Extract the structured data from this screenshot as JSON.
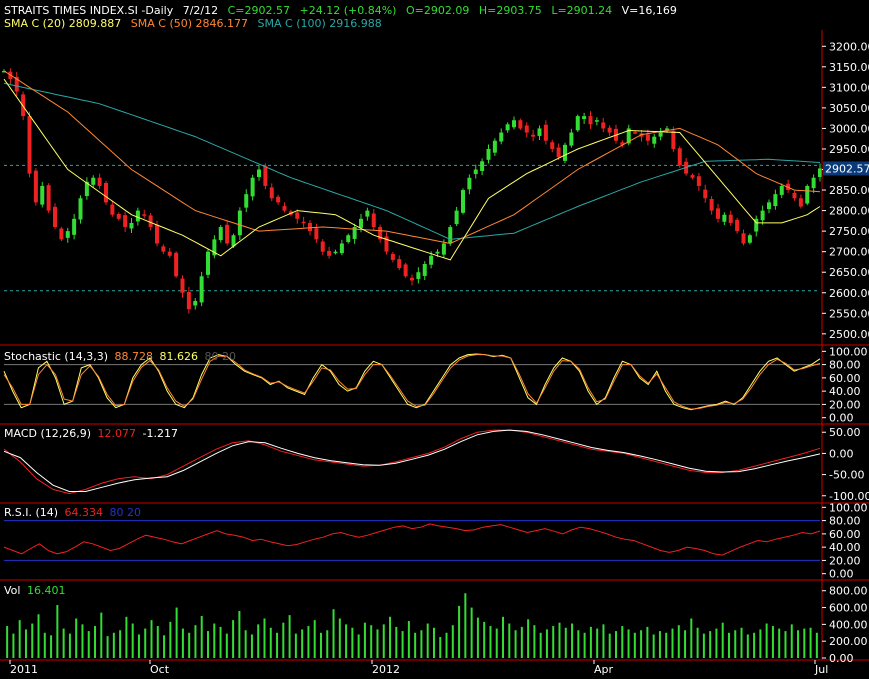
{
  "header": {
    "symbol": "STRAITS TIMES INDEX.SI -Daily",
    "date": "7/2/12",
    "close": "C=2902.57",
    "change": "+24.12 (+0.84%)",
    "open": "O=2902.09",
    "high": "H=2903.75",
    "low": "L=2901.24",
    "volume": "V=16,169"
  },
  "overlays": [
    {
      "label": "SMA C (20)",
      "value": "2809.887",
      "color": "#ffff66"
    },
    {
      "label": "SMA C (50)",
      "value": "2846.177",
      "color": "#ff8833"
    },
    {
      "label": "SMA C (100)",
      "value": "2916.988",
      "color": "#2aa7a7"
    }
  ],
  "last_price_tag": "2902.57",
  "panes": {
    "stochastic": {
      "label": "Stochastic (14,3,3)",
      "k": "88.728",
      "d": "81.626",
      "levels": "80 20"
    },
    "macd": {
      "label": "MACD (12,26,9)",
      "macd": "12.077",
      "signal": "-1.217"
    },
    "rsi": {
      "label": "R.S.I. (14)",
      "value": "64.334",
      "levels": "80 20"
    },
    "vol": {
      "label": "Vol",
      "value": "16.401"
    }
  },
  "colors": {
    "up": "#33dd33",
    "down": "#ee2222",
    "sma20": "#ffff66",
    "sma50": "#ff8833",
    "sma100": "#2aa7a7",
    "pane_border": "#cc0000",
    "stoch_k": "#ffff66",
    "stoch_d": "#ff8833",
    "macd_line": "#ffffff",
    "macd_signal": "#ee2222",
    "rsi_line": "#ee2222",
    "rsi_level": "#2233cc",
    "ref_line": "#2aa7a7",
    "vol_bar": "#33dd33"
  },
  "chart_data": [
    {
      "type": "candlestick",
      "title": "STRAITS TIMES INDEX.SI -Daily",
      "x_ticks": [
        "2011",
        "Oct",
        "2012",
        "Apr",
        "Jul"
      ],
      "y_ticks": [
        "3200.00",
        "3150.00",
        "3100.00",
        "3050.00",
        "3000.00",
        "2950.00",
        "2900.00",
        "2850.00",
        "2800.00",
        "2750.00",
        "2700.00",
        "2650.00",
        "2600.00",
        "2550.00",
        "2500.00"
      ],
      "ylim": [
        2485,
        3225
      ],
      "reference_lines": [
        2910,
        2605
      ],
      "closes": [
        3140,
        3120,
        3090,
        3030,
        2890,
        2820,
        2860,
        2800,
        2760,
        2730,
        2750,
        2780,
        2830,
        2870,
        2880,
        2860,
        2820,
        2790,
        2780,
        2760,
        2770,
        2800,
        2790,
        2760,
        2720,
        2700,
        2690,
        2640,
        2600,
        2560,
        2580,
        2640,
        2700,
        2730,
        2760,
        2720,
        2740,
        2800,
        2840,
        2880,
        2900,
        2860,
        2830,
        2820,
        2800,
        2790,
        2780,
        2770,
        2750,
        2730,
        2700,
        2690,
        2700,
        2720,
        2740,
        2760,
        2780,
        2800,
        2760,
        2730,
        2700,
        2680,
        2660,
        2640,
        2630,
        2650,
        2670,
        2690,
        2700,
        2720,
        2760,
        2800,
        2850,
        2880,
        2900,
        2920,
        2950,
        2970,
        2990,
        3010,
        3020,
        3000,
        2990,
        2980,
        3000,
        2970,
        2950,
        2930,
        2960,
        2990,
        3030,
        3030,
        3010,
        3020,
        3000,
        2990,
        2970,
        2960,
        3000,
        2990,
        2980,
        2970,
        2980,
        2990,
        3000,
        2950,
        2910,
        2890,
        2880,
        2860,
        2830,
        2800,
        2780,
        2790,
        2770,
        2750,
        2720,
        2740,
        2780,
        2800,
        2820,
        2840,
        2860,
        2850,
        2830,
        2810,
        2860,
        2880,
        2902.57
      ],
      "sma20_anchors": [
        [
          0,
          3120
        ],
        [
          10,
          2900
        ],
        [
          20,
          2790
        ],
        [
          28,
          2740
        ],
        [
          34,
          2690
        ],
        [
          40,
          2760
        ],
        [
          46,
          2800
        ],
        [
          52,
          2790
        ],
        [
          58,
          2740
        ],
        [
          64,
          2710
        ],
        [
          70,
          2680
        ],
        [
          76,
          2830
        ],
        [
          82,
          2890
        ],
        [
          90,
          2950
        ],
        [
          98,
          2995
        ],
        [
          106,
          2990
        ],
        [
          112,
          2880
        ],
        [
          118,
          2770
        ],
        [
          122,
          2770
        ],
        [
          126,
          2790
        ],
        [
          128,
          2810
        ]
      ],
      "sma50_anchors": [
        [
          0,
          3140
        ],
        [
          10,
          3040
        ],
        [
          20,
          2900
        ],
        [
          30,
          2800
        ],
        [
          40,
          2750
        ],
        [
          50,
          2760
        ],
        [
          60,
          2750
        ],
        [
          70,
          2720
        ],
        [
          80,
          2790
        ],
        [
          90,
          2900
        ],
        [
          100,
          2985
        ],
        [
          106,
          3000
        ],
        [
          112,
          2960
        ],
        [
          118,
          2890
        ],
        [
          124,
          2850
        ],
        [
          128,
          2846
        ]
      ],
      "sma100_anchors": [
        [
          0,
          3110
        ],
        [
          15,
          3060
        ],
        [
          30,
          2980
        ],
        [
          45,
          2880
        ],
        [
          60,
          2800
        ],
        [
          70,
          2730
        ],
        [
          80,
          2745
        ],
        [
          90,
          2810
        ],
        [
          100,
          2870
        ],
        [
          110,
          2920
        ],
        [
          120,
          2925
        ],
        [
          128,
          2917
        ]
      ]
    },
    {
      "type": "line",
      "title": "Stochastic (14,3,3)",
      "y_ticks": [
        "100.00",
        "80.00",
        "60.00",
        "40.00",
        "20.00",
        "0.00"
      ],
      "ylim": [
        -5,
        102
      ],
      "levels": [
        80,
        20
      ],
      "series": [
        {
          "name": "%K",
          "values": [
            70,
            40,
            15,
            20,
            75,
            85,
            60,
            20,
            25,
            75,
            80,
            60,
            30,
            15,
            20,
            60,
            80,
            90,
            70,
            40,
            20,
            15,
            30,
            65,
            90,
            95,
            92,
            80,
            70,
            65,
            60,
            50,
            55,
            45,
            40,
            35,
            60,
            80,
            70,
            50,
            40,
            45,
            70,
            85,
            80,
            60,
            40,
            20,
            15,
            20,
            40,
            60,
            80,
            90,
            95,
            96,
            95,
            92,
            94,
            90,
            60,
            30,
            20,
            50,
            75,
            90,
            85,
            70,
            40,
            20,
            30,
            60,
            85,
            80,
            60,
            50,
            70,
            40,
            20,
            15,
            12,
            15,
            18,
            20,
            25,
            20,
            30,
            50,
            70,
            85,
            90,
            80,
            70,
            75,
            80,
            88.728
          ]
        },
        {
          "name": "%D",
          "values": [
            65,
            45,
            20,
            20,
            65,
            80,
            65,
            28,
            25,
            65,
            78,
            62,
            35,
            18,
            20,
            55,
            76,
            86,
            72,
            45,
            25,
            17,
            28,
            58,
            85,
            93,
            92,
            83,
            72,
            66,
            61,
            52,
            54,
            47,
            42,
            37,
            55,
            75,
            72,
            55,
            43,
            44,
            65,
            80,
            80,
            63,
            44,
            25,
            17,
            19,
            36,
            56,
            75,
            87,
            93,
            95,
            95,
            93,
            93,
            90,
            65,
            36,
            22,
            45,
            70,
            86,
            85,
            73,
            45,
            24,
            28,
            55,
            80,
            80,
            63,
            52,
            66,
            45,
            24,
            17,
            13,
            14,
            17,
            19,
            23,
            21,
            28,
            45,
            65,
            80,
            88,
            82,
            72,
            74,
            78,
            81.626
          ]
        }
      ]
    },
    {
      "type": "line",
      "title": "MACD (12,26,9)",
      "y_ticks": [
        "50.00",
        "0.00",
        "-50.00",
        "-100.00"
      ],
      "ylim": [
        -110,
        60
      ],
      "series": [
        {
          "name": "MACD",
          "values": [
            10,
            -20,
            -60,
            -85,
            -95,
            -85,
            -70,
            -60,
            -55,
            -60,
            -50,
            -30,
            -10,
            10,
            25,
            30,
            20,
            5,
            -5,
            -15,
            -20,
            -25,
            -30,
            -28,
            -20,
            -10,
            0,
            15,
            35,
            50,
            55,
            55,
            50,
            40,
            30,
            20,
            10,
            5,
            0,
            -10,
            -20,
            -30,
            -40,
            -45,
            -45,
            -40,
            -30,
            -20,
            -10,
            0,
            12.077
          ]
        },
        {
          "name": "Signal",
          "values": [
            5,
            -10,
            -45,
            -75,
            -90,
            -90,
            -80,
            -70,
            -62,
            -58,
            -55,
            -40,
            -20,
            0,
            18,
            28,
            25,
            12,
            0,
            -10,
            -17,
            -22,
            -27,
            -28,
            -23,
            -14,
            -4,
            10,
            28,
            44,
            52,
            55,
            52,
            44,
            34,
            24,
            14,
            7,
            2,
            -6,
            -15,
            -25,
            -35,
            -42,
            -44,
            -43,
            -36,
            -27,
            -18,
            -10,
            -1.217
          ]
        }
      ]
    },
    {
      "type": "line",
      "title": "R.S.I. (14)",
      "y_ticks": [
        "100.00",
        "80.00",
        "60.00",
        "40.00",
        "20.00",
        "0.00"
      ],
      "ylim": [
        -5,
        102
      ],
      "levels": [
        80,
        20
      ],
      "series": [
        {
          "name": "RSI",
          "values": [
            40,
            35,
            30,
            38,
            45,
            35,
            30,
            33,
            40,
            48,
            45,
            40,
            35,
            38,
            45,
            52,
            58,
            55,
            52,
            48,
            45,
            50,
            55,
            60,
            65,
            60,
            58,
            55,
            50,
            52,
            48,
            45,
            42,
            44,
            48,
            52,
            55,
            60,
            62,
            58,
            55,
            58,
            62,
            66,
            70,
            72,
            68,
            70,
            75,
            72,
            70,
            68,
            65,
            66,
            70,
            72,
            74,
            70,
            66,
            62,
            65,
            68,
            64,
            60,
            66,
            70,
            68,
            64,
            60,
            55,
            52,
            50,
            45,
            40,
            35,
            32,
            35,
            40,
            38,
            35,
            30,
            28,
            34,
            40,
            45,
            50,
            48,
            52,
            55,
            58,
            62,
            60,
            64.334
          ]
        }
      ]
    },
    {
      "type": "bar",
      "title": "Vol",
      "y_ticks": [
        "800.00",
        "600.00",
        "400.00",
        "200.00",
        "0.00"
      ],
      "ylim": [
        0,
        880
      ],
      "values": [
        380,
        290,
        450,
        340,
        410,
        520,
        300,
        270,
        630,
        350,
        290,
        470,
        400,
        320,
        380,
        540,
        260,
        300,
        330,
        490,
        410,
        280,
        350,
        450,
        380,
        270,
        430,
        600,
        350,
        300,
        390,
        500,
        320,
        410,
        370,
        290,
        450,
        560,
        330,
        280,
        400,
        470,
        360,
        300,
        420,
        510,
        290,
        340,
        380,
        450,
        300,
        330,
        580,
        470,
        400,
        360,
        280,
        420,
        390,
        340,
        400,
        490,
        370,
        320,
        440,
        300,
        330,
        410,
        360,
        250,
        300,
        390,
        620,
        770,
        600,
        480,
        430,
        380,
        350,
        490,
        410,
        330,
        370,
        460,
        390,
        300,
        340,
        380,
        420,
        360,
        410,
        330,
        300,
        370,
        350,
        400,
        290,
        320,
        380,
        340,
        300,
        330,
        370,
        280,
        320,
        300,
        350,
        390,
        330,
        470,
        360,
        290,
        320,
        350,
        420,
        300,
        330,
        360,
        280,
        300,
        340,
        410,
        380,
        350,
        320,
        400,
        330,
        350,
        360,
        300
      ]
    }
  ]
}
